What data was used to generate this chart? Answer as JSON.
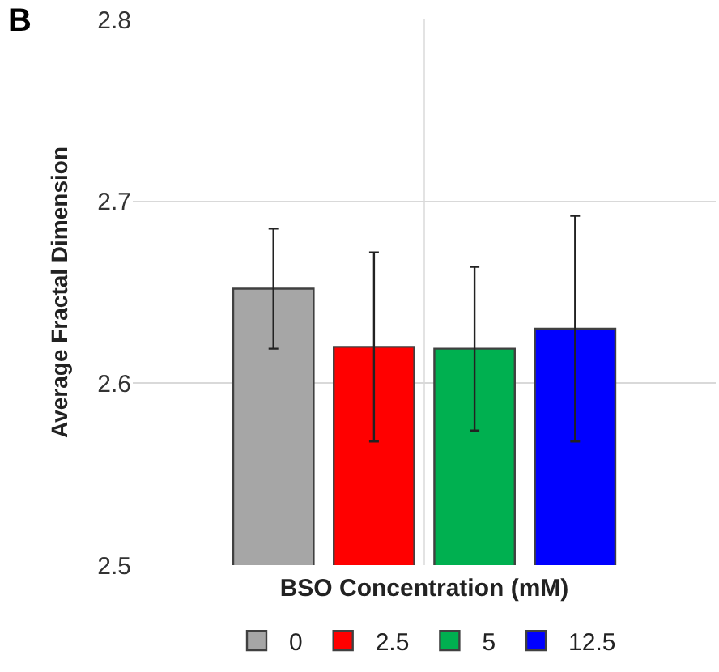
{
  "chart_data": {
    "type": "bar",
    "categories": [
      null
    ],
    "series": [
      {
        "name": "0",
        "color": "#a6a6a6",
        "values": [
          2.652
        ],
        "errors": [
          0.033
        ]
      },
      {
        "name": "2.5",
        "color": "#ff0000",
        "values": [
          2.62
        ],
        "errors": [
          0.052
        ]
      },
      {
        "name": "5",
        "color": "#00b050",
        "values": [
          2.619
        ],
        "errors": [
          0.045
        ]
      },
      {
        "name": "12.5",
        "color": "#0000ff",
        "values": [
          2.63
        ],
        "errors": [
          0.062
        ]
      }
    ],
    "xlabel": "BSO Concentration (mM)",
    "ylabel": "Average Fractal Dimension",
    "annotations": [
      "B"
    ],
    "ylim": [
      2.5,
      2.8
    ],
    "yticks": [
      2.5,
      2.6,
      2.7,
      2.8
    ],
    "grid": true,
    "legend": "bottom"
  }
}
